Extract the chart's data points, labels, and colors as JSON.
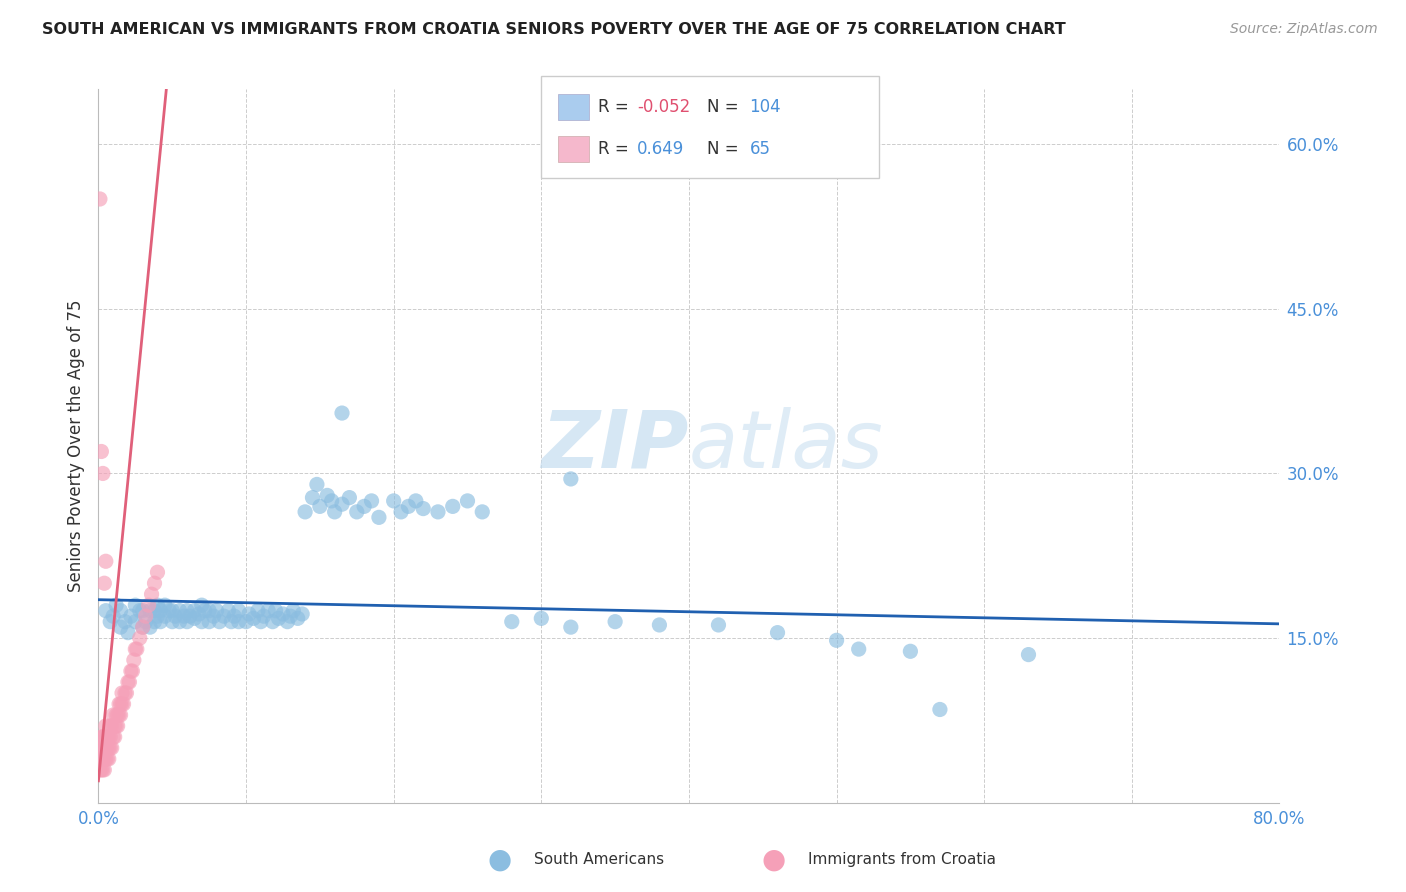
{
  "title": "SOUTH AMERICAN VS IMMIGRANTS FROM CROATIA SENIORS POVERTY OVER THE AGE OF 75 CORRELATION CHART",
  "source": "Source: ZipAtlas.com",
  "ylabel": "Seniors Poverty Over the Age of 75",
  "watermark_zip": "ZIP",
  "watermark_atlas": "atlas",
  "xlim": [
    0,
    0.8
  ],
  "ylim": [
    0,
    0.65
  ],
  "xtick_positions": [
    0.0,
    0.1,
    0.2,
    0.3,
    0.4,
    0.5,
    0.6,
    0.7,
    0.8
  ],
  "xticklabels": [
    "0.0%",
    "",
    "",
    "",
    "",
    "",
    "",
    "",
    "80.0%"
  ],
  "ytick_positions": [
    0.0,
    0.15,
    0.3,
    0.45,
    0.6
  ],
  "yticklabels": [
    "",
    "15.0%",
    "30.0%",
    "45.0%",
    "60.0%"
  ],
  "blue_color": "#8bbde0",
  "blue_line_color": "#2060b0",
  "pink_color": "#f5a0b8",
  "pink_line_color": "#e0607a",
  "legend_box_blue": "#aaccee",
  "legend_box_pink": "#f5b8cc",
  "R_blue": -0.052,
  "N_blue": 104,
  "R_pink": 0.649,
  "N_pink": 65,
  "blue_trend_x0": 0.0,
  "blue_trend_y0": 0.185,
  "blue_trend_x1": 0.8,
  "blue_trend_y1": 0.163,
  "pink_trend_x0": 0.0,
  "pink_trend_y0": 0.02,
  "pink_trend_x1": 0.046,
  "pink_trend_y1": 0.65,
  "blue_scatter_x": [
    0.005,
    0.008,
    0.01,
    0.012,
    0.015,
    0.015,
    0.018,
    0.02,
    0.022,
    0.025,
    0.025,
    0.028,
    0.03,
    0.03,
    0.032,
    0.035,
    0.035,
    0.038,
    0.038,
    0.04,
    0.04,
    0.042,
    0.042,
    0.045,
    0.045,
    0.048,
    0.05,
    0.05,
    0.052,
    0.055,
    0.055,
    0.058,
    0.06,
    0.06,
    0.062,
    0.065,
    0.065,
    0.068,
    0.07,
    0.07,
    0.072,
    0.075,
    0.075,
    0.078,
    0.08,
    0.082,
    0.085,
    0.088,
    0.09,
    0.092,
    0.095,
    0.095,
    0.1,
    0.102,
    0.105,
    0.108,
    0.11,
    0.112,
    0.115,
    0.118,
    0.12,
    0.122,
    0.125,
    0.128,
    0.13,
    0.132,
    0.135,
    0.138,
    0.14,
    0.145,
    0.148,
    0.15,
    0.155,
    0.158,
    0.16,
    0.165,
    0.17,
    0.175,
    0.18,
    0.185,
    0.19,
    0.2,
    0.205,
    0.21,
    0.215,
    0.22,
    0.23,
    0.24,
    0.25,
    0.26,
    0.28,
    0.3,
    0.32,
    0.35,
    0.38,
    0.42,
    0.46,
    0.5,
    0.55,
    0.63,
    0.165,
    0.32,
    0.515,
    0.57
  ],
  "blue_scatter_y": [
    0.175,
    0.165,
    0.17,
    0.18,
    0.16,
    0.175,
    0.165,
    0.155,
    0.17,
    0.18,
    0.165,
    0.175,
    0.16,
    0.175,
    0.165,
    0.16,
    0.175,
    0.165,
    0.175,
    0.17,
    0.18,
    0.175,
    0.165,
    0.17,
    0.18,
    0.175,
    0.165,
    0.175,
    0.17,
    0.175,
    0.165,
    0.17,
    0.175,
    0.165,
    0.17,
    0.175,
    0.168,
    0.172,
    0.165,
    0.18,
    0.175,
    0.165,
    0.175,
    0.17,
    0.175,
    0.165,
    0.17,
    0.175,
    0.165,
    0.17,
    0.165,
    0.175,
    0.165,
    0.172,
    0.168,
    0.175,
    0.165,
    0.17,
    0.175,
    0.165,
    0.175,
    0.168,
    0.172,
    0.165,
    0.17,
    0.175,
    0.168,
    0.172,
    0.265,
    0.278,
    0.29,
    0.27,
    0.28,
    0.275,
    0.265,
    0.272,
    0.278,
    0.265,
    0.27,
    0.275,
    0.26,
    0.275,
    0.265,
    0.27,
    0.275,
    0.268,
    0.265,
    0.27,
    0.275,
    0.265,
    0.165,
    0.168,
    0.16,
    0.165,
    0.162,
    0.162,
    0.155,
    0.148,
    0.138,
    0.135,
    0.355,
    0.295,
    0.14,
    0.085
  ],
  "pink_scatter_x": [
    0.001,
    0.001,
    0.001,
    0.002,
    0.002,
    0.002,
    0.002,
    0.003,
    0.003,
    0.003,
    0.003,
    0.004,
    0.004,
    0.004,
    0.004,
    0.005,
    0.005,
    0.005,
    0.006,
    0.006,
    0.006,
    0.007,
    0.007,
    0.007,
    0.008,
    0.008,
    0.008,
    0.009,
    0.009,
    0.01,
    0.01,
    0.011,
    0.011,
    0.012,
    0.012,
    0.013,
    0.013,
    0.014,
    0.014,
    0.015,
    0.015,
    0.016,
    0.016,
    0.017,
    0.018,
    0.019,
    0.02,
    0.021,
    0.022,
    0.023,
    0.024,
    0.025,
    0.026,
    0.028,
    0.03,
    0.032,
    0.034,
    0.036,
    0.038,
    0.04,
    0.001,
    0.002,
    0.003,
    0.004,
    0.005
  ],
  "pink_scatter_y": [
    0.03,
    0.04,
    0.05,
    0.03,
    0.04,
    0.05,
    0.06,
    0.03,
    0.04,
    0.05,
    0.06,
    0.03,
    0.04,
    0.05,
    0.06,
    0.04,
    0.05,
    0.07,
    0.04,
    0.05,
    0.06,
    0.04,
    0.05,
    0.06,
    0.05,
    0.06,
    0.07,
    0.05,
    0.07,
    0.06,
    0.08,
    0.06,
    0.07,
    0.07,
    0.08,
    0.07,
    0.08,
    0.08,
    0.09,
    0.08,
    0.09,
    0.09,
    0.1,
    0.09,
    0.1,
    0.1,
    0.11,
    0.11,
    0.12,
    0.12,
    0.13,
    0.14,
    0.14,
    0.15,
    0.16,
    0.17,
    0.18,
    0.19,
    0.2,
    0.21,
    0.55,
    0.32,
    0.3,
    0.2,
    0.22
  ]
}
